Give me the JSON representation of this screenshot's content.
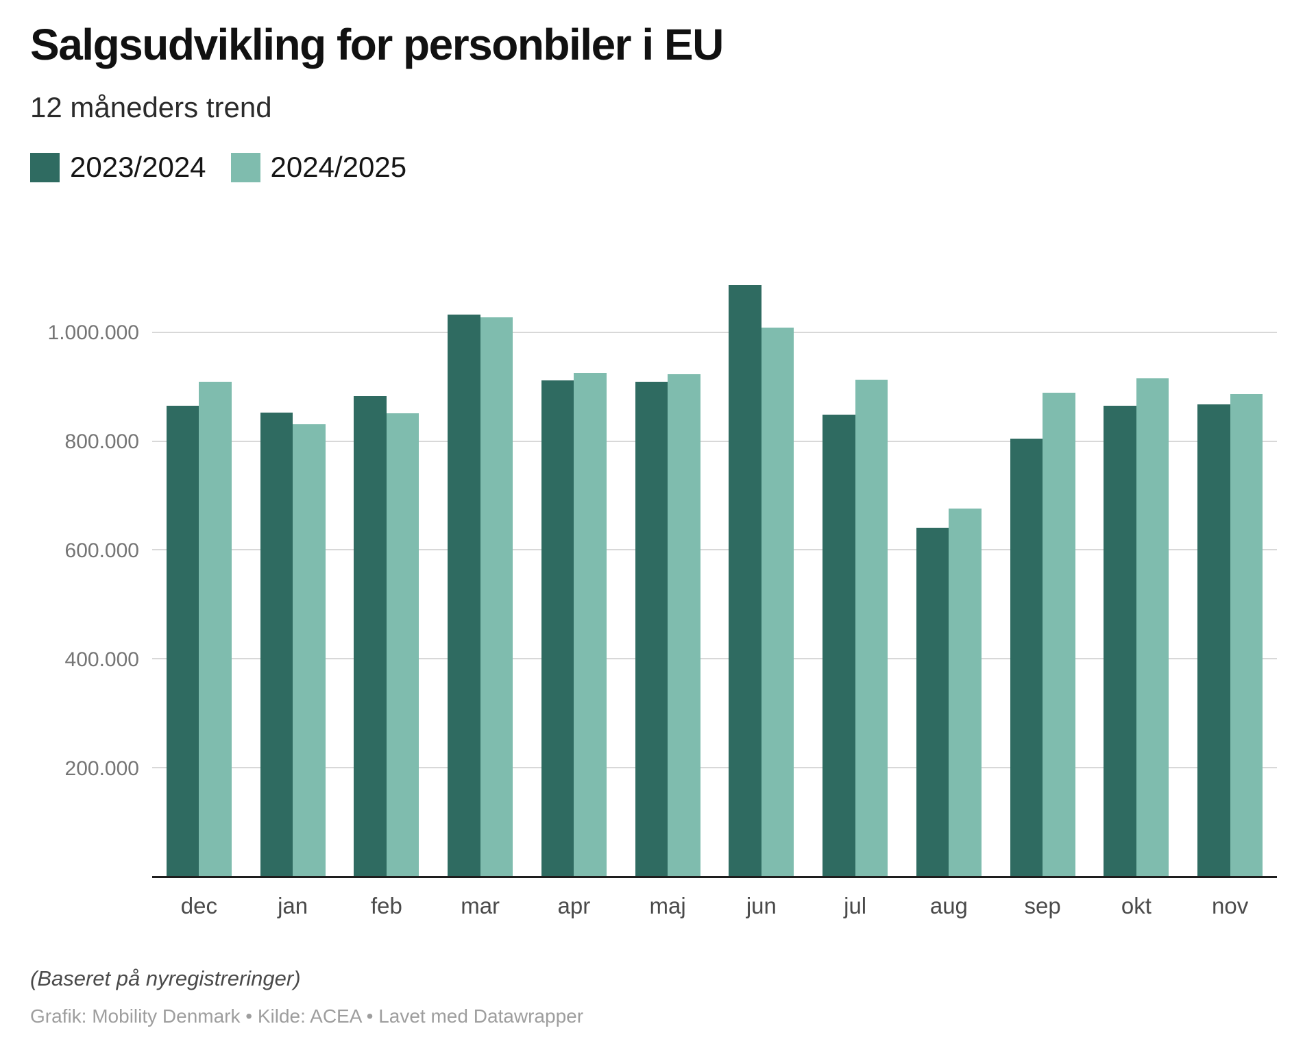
{
  "title": "Salgsudvikling for personbiler i EU",
  "subtitle": "12 måneders trend",
  "legend": [
    {
      "label": "2023/2024",
      "color": "#2f6b61"
    },
    {
      "label": "2024/2025",
      "color": "#7fbcae"
    }
  ],
  "footer": {
    "note": "(Baseret på nyregistreringer)",
    "credit": "Grafik: Mobility Denmark • Kilde: ACEA • Lavet med Datawrapper"
  },
  "colors": {
    "series_dark": "#2f6b61",
    "series_light": "#7fbcae",
    "gridline": "#d8d8d8",
    "axis_line": "#1e1e1e",
    "tick_label": "#757575",
    "month_label": "#4a4a4a"
  },
  "chart_data": {
    "type": "bar",
    "title": "Salgsudvikling for personbiler i EU",
    "subtitle": "12 måneders trend",
    "xlabel": "",
    "ylabel": "",
    "grid": "horizontal",
    "legend_position": "top-left",
    "categories": [
      "dec",
      "jan",
      "feb",
      "mar",
      "apr",
      "maj",
      "jun",
      "jul",
      "aug",
      "sep",
      "okt",
      "nov"
    ],
    "series": [
      {
        "name": "2023/2024",
        "color": "#2f6b61",
        "values": [
          866000,
          853000,
          883000,
          1033000,
          912000,
          910000,
          1088000,
          849000,
          641000,
          805000,
          865000,
          868000
        ]
      },
      {
        "name": "2024/2025",
        "color": "#7fbcae",
        "values": [
          910000,
          832000,
          852000,
          1028000,
          926000,
          924000,
          1009000,
          913000,
          676000,
          889000,
          916000,
          887000
        ]
      }
    ],
    "ylim": [
      0,
      1234000
    ],
    "yticks": [
      {
        "value": 200000,
        "label": "200.000"
      },
      {
        "value": 400000,
        "label": "400.000"
      },
      {
        "value": 600000,
        "label": "600.000"
      },
      {
        "value": 800000,
        "label": "800.000"
      },
      {
        "value": 1000000,
        "label": "1.000.000"
      }
    ]
  }
}
